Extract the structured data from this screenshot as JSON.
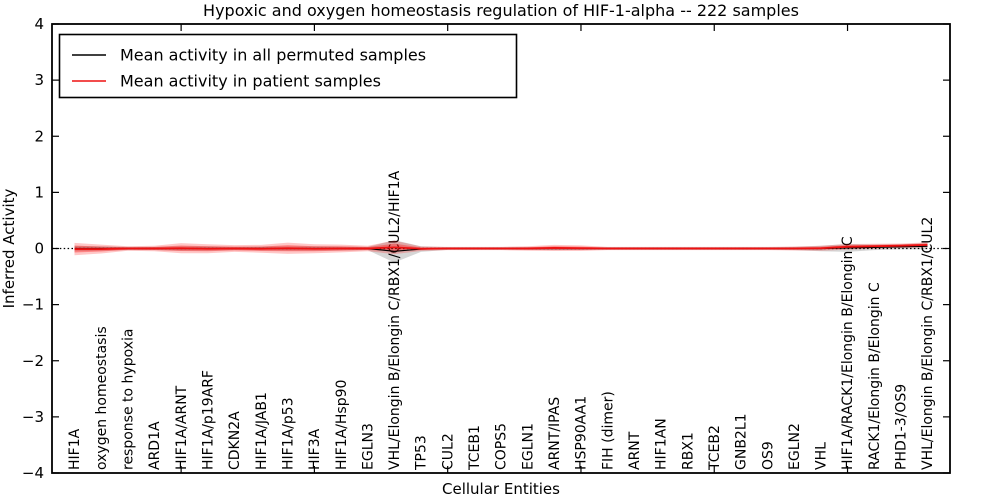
{
  "figure": {
    "title": "Hypoxic and oxygen homeostasis regulation of HIF-1-alpha -- 222 samples",
    "sample_count_in_title": "222"
  },
  "chart_data": {
    "type": "line",
    "title": "Hypoxic and oxygen homeostasis regulation of HIF-1-alpha -- 222 samples",
    "xlabel": "Cellular Entities",
    "ylabel": "Inferred Activity",
    "ylim": [
      -4,
      4
    ],
    "yticks": [
      -4,
      -3,
      -2,
      -1,
      0,
      1,
      2,
      3,
      4
    ],
    "grid": false,
    "zero_reference_line": {
      "style": "dotted",
      "color": "#000000",
      "y": 0
    },
    "legend_position": "upper left",
    "layout": {
      "x_major_tick_indices": [
        4,
        9,
        14,
        19,
        24,
        29
      ],
      "x_tick_label_rotation_deg": 90,
      "band_meaning": "shaded region = spread (std) around each mean line"
    },
    "categories": [
      "HIF1A",
      "oxygen homeostasis",
      "response to hypoxia",
      "ARD1A",
      "HIF1A/ARNT",
      "HIF1A/p19ARF",
      "CDKN2A",
      "HIF1A/JAB1",
      "HIF1A/p53",
      "HIF3A",
      "HIF1A/Hsp90",
      "EGLN3",
      "VHL/Elongin B/Elongin C/RBX1/CUL2/HIF1A",
      "TP53",
      "CUL2",
      "TCEB1",
      "COPS5",
      "EGLN1",
      "ARNT/IPAS",
      "HSP90AA1",
      "FIH (dimer)",
      "ARNT",
      "HIF1AN",
      "RBX1",
      "TCEB2",
      "GNB2L1",
      "OS9",
      "EGLN2",
      "VHL",
      "HIF1A/RACK1/Elongin B/Elongin C",
      "RACK1/Elongin B/Elongin C",
      "PHD1-3/OS9",
      "VHL/Elongin B/Elongin C/RBX1/CUL2"
    ],
    "series": [
      {
        "name": "Mean activity in all permuted samples",
        "color": "#000000",
        "band_color": "#000000",
        "band_opacity": 0.16,
        "mean": [
          0,
          0,
          0,
          0,
          0,
          0,
          0,
          0,
          0,
          0,
          0,
          0,
          -0.05,
          -0.01,
          0,
          0,
          0,
          0,
          0,
          0,
          0,
          0,
          0,
          0,
          0,
          0,
          0,
          0,
          0,
          0.01,
          0.02,
          0.03,
          0.04
        ],
        "std": [
          0.05,
          0.04,
          0.03,
          0.03,
          0.04,
          0.04,
          0.03,
          0.035,
          0.04,
          0.04,
          0.035,
          0.03,
          0.2,
          0.05,
          0.025,
          0.025,
          0.025,
          0.025,
          0.03,
          0.025,
          0.025,
          0.025,
          0.025,
          0.025,
          0.025,
          0.025,
          0.025,
          0.03,
          0.05,
          0.07,
          0.05,
          0.045,
          0.055
        ]
      },
      {
        "name": "Mean activity in patient samples",
        "color": "#ee1111",
        "band_color": "#ff0000",
        "band_opacity": 0.22,
        "mean": [
          -0.01,
          -0.01,
          0,
          0,
          0.005,
          -0.005,
          0,
          -0.005,
          0.005,
          -0.005,
          0,
          0,
          0.02,
          -0.005,
          0,
          0,
          0,
          0,
          0.01,
          0.005,
          0,
          0,
          0,
          0,
          0,
          0,
          0,
          0,
          0.005,
          0.03,
          0.04,
          0.05,
          0.065
        ],
        "std": [
          0.11,
          0.08,
          0.04,
          0.05,
          0.09,
          0.08,
          0.06,
          0.07,
          0.1,
          0.08,
          0.07,
          0.05,
          0.12,
          0.04,
          0.03,
          0.03,
          0.03,
          0.04,
          0.055,
          0.05,
          0.03,
          0.03,
          0.03,
          0.03,
          0.03,
          0.03,
          0.03,
          0.035,
          0.045,
          0.05,
          0.045,
          0.04,
          0.045
        ]
      }
    ]
  }
}
